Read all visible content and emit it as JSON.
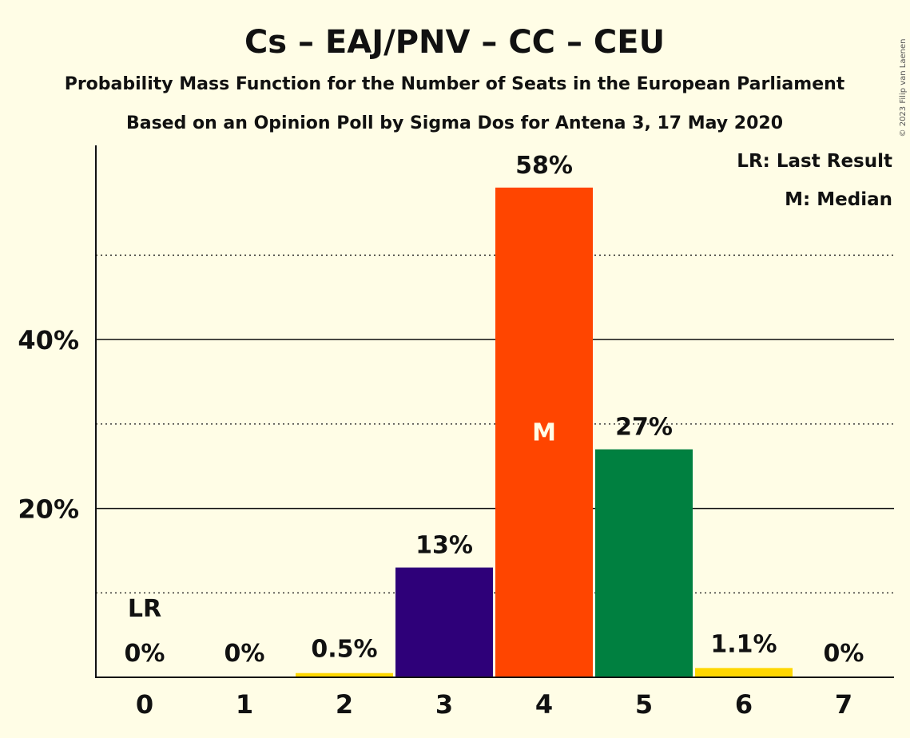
{
  "chart_data": {
    "type": "bar",
    "title": "Cs – EAJ/PNV – CC – CEU",
    "subtitle_1": "Probability Mass Function for the Number of Seats in the European Parliament",
    "subtitle_2": "Based on an Opinion Poll by Sigma Dos for Antena 3, 17 May 2020",
    "categories": [
      "0",
      "1",
      "2",
      "3",
      "4",
      "5",
      "6",
      "7"
    ],
    "values": [
      0,
      0,
      0.5,
      13,
      58,
      27,
      1.1,
      0
    ],
    "data_labels": [
      "0%",
      "0%",
      "0.5%",
      "13%",
      "58%",
      "27%",
      "1.1%",
      "0%"
    ],
    "bar_colors": [
      "#ffd700",
      "#ffd700",
      "#ffd700",
      "#2e0079",
      "#ff4500",
      "#008040",
      "#ffd700",
      "#ffd700"
    ],
    "ylim": [
      0,
      63
    ],
    "yticks": [
      {
        "value": 20,
        "label": "20%"
      },
      {
        "value": 40,
        "label": "40%"
      }
    ],
    "minor_gridlines": [
      10,
      30,
      50
    ],
    "median_index": 4,
    "median_marker": "M",
    "last_result_index": 0,
    "last_result_marker": "LR",
    "legend": [
      "LR: Last Result",
      "M: Median"
    ],
    "legend_position": "top-right",
    "copyright": "© 2023 Filip van Laenen"
  }
}
